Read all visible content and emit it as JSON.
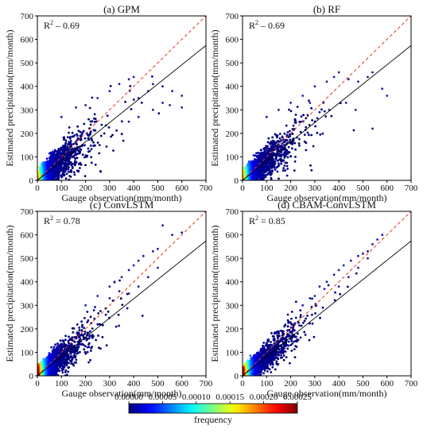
{
  "chart_data": [
    {
      "type": "scatter",
      "title": "(a) GPM",
      "r2_label": "R",
      "r2_sup": "2",
      "r2_value": " – 0.69",
      "xlabel": "Gauge observation(mm/month)",
      "ylabel": "Estimated precipitation(mm/month)",
      "xlim": [
        0,
        700
      ],
      "ylim": [
        0,
        700
      ],
      "xticks": [
        "0",
        "100",
        "200",
        "300",
        "400",
        "500",
        "600",
        "700"
      ],
      "yticks": [
        "0",
        "100",
        "200",
        "300",
        "400",
        "500",
        "600",
        "700"
      ],
      "fit_line": {
        "slope": 0.82,
        "intercept": 0
      },
      "identity_line": true,
      "spread": 0.22,
      "outliers": [
        [
          100,
          270
        ],
        [
          160,
          310
        ],
        [
          200,
          320
        ],
        [
          250,
          350
        ],
        [
          300,
          380
        ],
        [
          340,
          410
        ],
        [
          380,
          430
        ],
        [
          400,
          440
        ],
        [
          420,
          350
        ],
        [
          460,
          380
        ],
        [
          480,
          410
        ],
        [
          520,
          400
        ],
        [
          560,
          380
        ],
        [
          600,
          360
        ],
        [
          380,
          250
        ],
        [
          420,
          270
        ],
        [
          480,
          300
        ],
        [
          520,
          330
        ],
        [
          550,
          320
        ],
        [
          600,
          310
        ]
      ]
    },
    {
      "type": "scatter",
      "title": "(b) RF",
      "r2_label": "R",
      "r2_sup": "2",
      "r2_value": " – 0.69",
      "xlabel": "Gauge observation(mm/month)",
      "ylabel": "Estimated precipitation(mm/month)",
      "xlim": [
        0,
        700
      ],
      "ylim": [
        0,
        700
      ],
      "xticks": [
        "0",
        "100",
        "200",
        "300",
        "400",
        "500",
        "600",
        "700"
      ],
      "yticks": [
        "0",
        "100",
        "200",
        "300",
        "400",
        "500",
        "600",
        "700"
      ],
      "fit_line": {
        "slope": 0.82,
        "intercept": 0
      },
      "identity_line": true,
      "spread": 0.2,
      "outliers": [
        [
          100,
          270
        ],
        [
          150,
          300
        ],
        [
          200,
          330
        ],
        [
          250,
          360
        ],
        [
          300,
          400
        ],
        [
          350,
          420
        ],
        [
          380,
          440
        ],
        [
          400,
          460
        ],
        [
          440,
          430
        ],
        [
          480,
          420
        ],
        [
          520,
          440
        ],
        [
          540,
          460
        ],
        [
          580,
          390
        ],
        [
          600,
          360
        ],
        [
          430,
          330
        ],
        [
          470,
          300
        ],
        [
          540,
          220
        ],
        [
          360,
          300
        ],
        [
          320,
          290
        ],
        [
          280,
          330
        ]
      ]
    },
    {
      "type": "scatter",
      "title": "(c) ConvLSTM",
      "r2_label": "R",
      "r2_sup": "2",
      "r2_value": " = 0.78",
      "xlabel": "Gauge observation(mm/month)",
      "ylabel": "Estimated precipitation(mm/month)",
      "xlim": [
        0,
        700
      ],
      "ylim": [
        0,
        700
      ],
      "xticks": [
        "0",
        "100",
        "200",
        "300",
        "400",
        "500",
        "600",
        "700"
      ],
      "yticks": [
        "0",
        "100",
        "200",
        "300",
        "400",
        "500",
        "600",
        "700"
      ],
      "fit_line": {
        "slope": 0.82,
        "intercept": 0
      },
      "identity_line": true,
      "spread": 0.16,
      "outliers": [
        [
          200,
          300
        ],
        [
          250,
          340
        ],
        [
          300,
          380
        ],
        [
          320,
          400
        ],
        [
          350,
          420
        ],
        [
          380,
          450
        ],
        [
          400,
          470
        ],
        [
          420,
          490
        ],
        [
          440,
          510
        ],
        [
          480,
          530
        ],
        [
          500,
          540
        ],
        [
          520,
          640
        ],
        [
          560,
          600
        ],
        [
          600,
          610
        ],
        [
          380,
          350
        ],
        [
          420,
          380
        ],
        [
          460,
          420
        ],
        [
          500,
          460
        ],
        [
          300,
          330
        ],
        [
          340,
          360
        ]
      ]
    },
    {
      "type": "scatter",
      "title": "(d) CBAM-ConvLSTM",
      "r2_label": "R",
      "r2_sup": "2",
      "r2_value": " = 0.85",
      "xlabel": "Gauge observation(mm/month)",
      "ylabel": "Estimated precipitation(mm/month)",
      "xlim": [
        0,
        700
      ],
      "ylim": [
        0,
        700
      ],
      "xticks": [
        "0",
        "100",
        "200",
        "300",
        "400",
        "500",
        "600",
        "700"
      ],
      "yticks": [
        "0",
        "100",
        "200",
        "300",
        "400",
        "500",
        "600",
        "700"
      ],
      "fit_line": {
        "slope": 0.82,
        "intercept": 0
      },
      "identity_line": true,
      "spread": 0.13,
      "outliers": [
        [
          250,
          300
        ],
        [
          280,
          330
        ],
        [
          320,
          380
        ],
        [
          350,
          400
        ],
        [
          380,
          430
        ],
        [
          400,
          450
        ],
        [
          420,
          470
        ],
        [
          450,
          490
        ],
        [
          480,
          510
        ],
        [
          500,
          520
        ],
        [
          520,
          530
        ],
        [
          540,
          560
        ],
        [
          560,
          580
        ],
        [
          580,
          600
        ],
        [
          400,
          380
        ],
        [
          440,
          420
        ],
        [
          480,
          460
        ],
        [
          520,
          500
        ],
        [
          300,
          340
        ],
        [
          340,
          370
        ]
      ]
    }
  ],
  "colorbar": {
    "label": "frequency",
    "ticks": [
      "0.00000",
      "0.00005",
      "0.00010",
      "0.00015",
      "0.00020",
      "0.00025"
    ],
    "range": [
      0,
      0.00025
    ],
    "colormap": "jet"
  },
  "colors": {
    "identity_line": "#e03a1e",
    "fit_line": "#000000",
    "low_density": "#1a1aa8"
  }
}
